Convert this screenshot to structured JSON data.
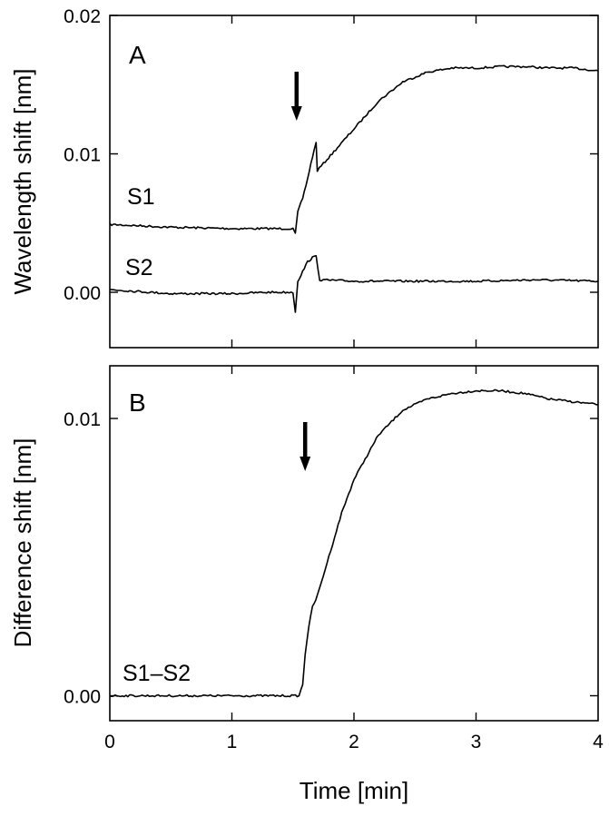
{
  "chart_data": [
    {
      "panel": "A",
      "type": "line",
      "xlabel": "",
      "ylabel": "Wavelength shift [nm]",
      "xlim": [
        0,
        4
      ],
      "ylim": [
        -0.004,
        0.02
      ],
      "x_ticks": [
        0,
        1,
        2,
        3,
        4
      ],
      "y_ticks": [
        0.0,
        0.01,
        0.02
      ],
      "y_tick_labels": [
        "0.00",
        "0.01",
        "0.02"
      ],
      "grid": false,
      "arrow_at_x": 1.53,
      "series": [
        {
          "name": "S1",
          "x": [
            0,
            0.5,
            1.0,
            1.3,
            1.5,
            1.52,
            1.54,
            1.58,
            1.62,
            1.66,
            1.69,
            1.7,
            1.75,
            1.85,
            2.0,
            2.2,
            2.4,
            2.6,
            2.8,
            3.0,
            3.2,
            3.4,
            3.6,
            3.8,
            4.0
          ],
          "y": [
            0.0049,
            0.0047,
            0.0046,
            0.0046,
            0.0046,
            0.0042,
            0.0058,
            0.0068,
            0.0082,
            0.0098,
            0.0108,
            0.0088,
            0.0093,
            0.0103,
            0.0118,
            0.0138,
            0.0152,
            0.0159,
            0.0162,
            0.0162,
            0.0163,
            0.0163,
            0.0162,
            0.0162,
            0.016
          ]
        },
        {
          "name": "S2",
          "x": [
            0,
            0.5,
            1.0,
            1.3,
            1.5,
            1.52,
            1.54,
            1.58,
            1.62,
            1.66,
            1.69,
            1.72,
            2.0,
            2.5,
            3.0,
            3.5,
            4.0
          ],
          "y": [
            0.0002,
            -0.0001,
            -0.0001,
            0.0,
            0.0,
            -0.0014,
            0.0008,
            0.0015,
            0.0022,
            0.0025,
            0.0026,
            0.0009,
            0.0008,
            0.0008,
            0.0008,
            0.0009,
            0.0008
          ]
        }
      ]
    },
    {
      "panel": "B",
      "type": "line",
      "xlabel": "Time [min]",
      "ylabel": "Difference shift [nm]",
      "xlim": [
        0,
        4
      ],
      "ylim": [
        -0.0009,
        0.0119
      ],
      "x_ticks": [
        0,
        1,
        2,
        3,
        4
      ],
      "x_tick_labels": [
        "0",
        "1",
        "2",
        "3",
        "4"
      ],
      "y_ticks": [
        0.0,
        0.01
      ],
      "y_tick_labels": [
        "0.00",
        "0.01"
      ],
      "grid": false,
      "arrow_at_x": 1.6,
      "series": [
        {
          "name": "S1–S2",
          "x": [
            0,
            0.5,
            1.0,
            1.4,
            1.55,
            1.58,
            1.6,
            1.63,
            1.66,
            1.7,
            1.78,
            1.9,
            2.0,
            2.2,
            2.4,
            2.6,
            2.8,
            3.0,
            3.2,
            3.4,
            3.6,
            3.8,
            4.0
          ],
          "y": [
            0.0,
            0.0,
            0.0,
            0.0,
            0.0,
            0.0004,
            0.0015,
            0.0025,
            0.0032,
            0.0036,
            0.0048,
            0.0066,
            0.0078,
            0.0094,
            0.0103,
            0.0107,
            0.0109,
            0.011,
            0.011,
            0.0109,
            0.0107,
            0.0106,
            0.0105
          ]
        }
      ]
    }
  ]
}
